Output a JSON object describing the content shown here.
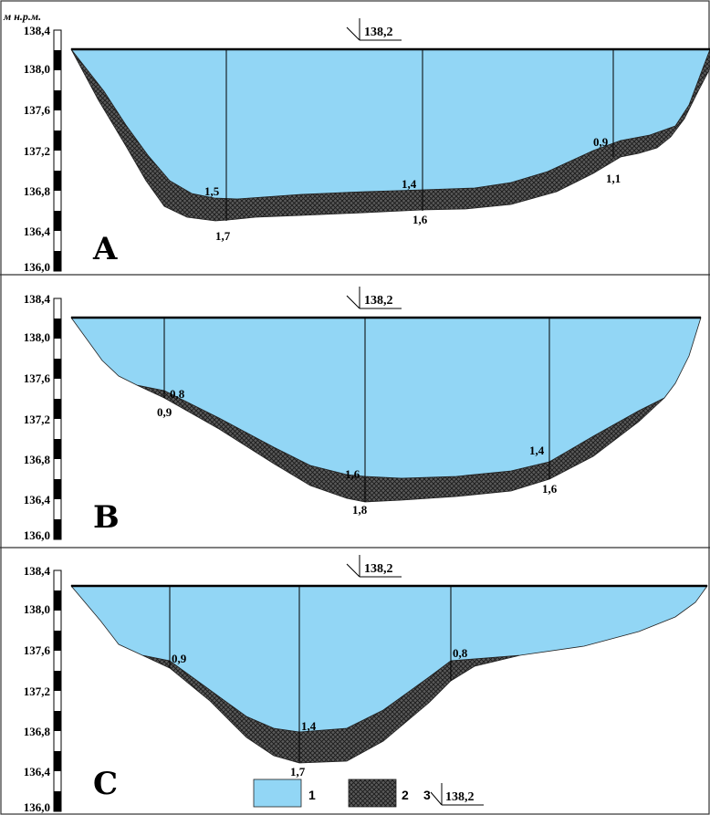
{
  "unit_label": "м н.р.м.",
  "axis_ticks": [
    "138,4",
    "138,0",
    "137,6",
    "137,2",
    "136,8",
    "136,4",
    "136,0"
  ],
  "water_level_label": "138,2",
  "colors": {
    "water": "#92d6f5",
    "sediment": "#555555",
    "frame": "#333333"
  },
  "panels": [
    {
      "letter": "A",
      "verticals": [
        {
          "top": "1,5",
          "bottom": "1,7"
        },
        {
          "top": "1,4",
          "bottom": "1,6"
        },
        {
          "top": "0,9",
          "bottom": "1,1"
        }
      ]
    },
    {
      "letter": "B",
      "verticals": [
        {
          "top": "0,8",
          "bottom": "0,9"
        },
        {
          "top": "1,6",
          "bottom": "1,8"
        },
        {
          "top": "1,4",
          "bottom": "1,6"
        }
      ]
    },
    {
      "letter": "C",
      "verticals": [
        {
          "top": "0,9",
          "bottom": ""
        },
        {
          "top": "1,4",
          "bottom": "1,7"
        },
        {
          "top": "0,8",
          "bottom": ""
        }
      ]
    }
  ],
  "legend": [
    {
      "number": "1",
      "icon": "water-swatch"
    },
    {
      "number": "2",
      "icon": "sediment-swatch"
    },
    {
      "number": "3",
      "label": "138,2",
      "icon": "water-level-marker"
    }
  ]
}
